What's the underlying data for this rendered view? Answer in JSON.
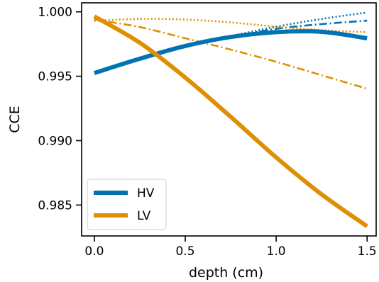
{
  "chart_data": {
    "type": "line",
    "xlabel": "depth (cm)",
    "ylabel": "CCE",
    "xlim": [
      -0.07,
      1.55
    ],
    "ylim": [
      0.9826,
      1.0007
    ],
    "xticks": [
      "0.0",
      "0.5",
      "1.0",
      "1.5"
    ],
    "yticks": [
      "0.985",
      "0.990",
      "0.995",
      "1.000"
    ],
    "grid": false,
    "legend": {
      "placement": "lower-left",
      "entries": [
        "HV",
        "LV"
      ]
    },
    "colors": {
      "HV": "#0173b2",
      "LV": "#de8f05"
    },
    "series": [
      {
        "name": "HV",
        "style": "solid",
        "x": [
          0,
          0.25,
          0.5,
          0.75,
          1.0,
          1.25,
          1.5
        ],
        "y": [
          0.99525,
          0.99636,
          0.99735,
          0.99805,
          0.99842,
          0.99845,
          0.99795
        ]
      },
      {
        "name": "LV",
        "style": "solid",
        "x": [
          0,
          0.25,
          0.5,
          0.75,
          1.0,
          1.25,
          1.5
        ],
        "y": [
          0.99965,
          0.9976,
          0.9949,
          0.99185,
          0.9887,
          0.98583,
          0.98335
        ]
      },
      {
        "style": "dashdot",
        "color": "#0173b2",
        "x": [
          0.75,
          1.0,
          1.25,
          1.5
        ],
        "y": [
          0.99805,
          0.99868,
          0.99905,
          0.99932
        ]
      },
      {
        "style": "dotted",
        "color": "#0173b2",
        "x": [
          0.75,
          1.0,
          1.25,
          1.5
        ],
        "y": [
          0.99812,
          0.99885,
          0.99945,
          0.99995
        ]
      },
      {
        "style": "dashdot",
        "color": "#de8f05",
        "x": [
          0,
          0.25,
          0.5,
          0.75,
          1.0,
          1.25,
          1.5
        ],
        "y": [
          0.9994,
          0.99882,
          0.99795,
          0.99707,
          0.99612,
          0.99508,
          0.99403
        ]
      },
      {
        "style": "dotted",
        "color": "#de8f05",
        "x": [
          0,
          0.25,
          0.5,
          0.75,
          1.0,
          1.25,
          1.5
        ],
        "y": [
          0.9993,
          0.99945,
          0.9994,
          0.99918,
          0.99885,
          0.99858,
          0.99842
        ]
      }
    ]
  }
}
